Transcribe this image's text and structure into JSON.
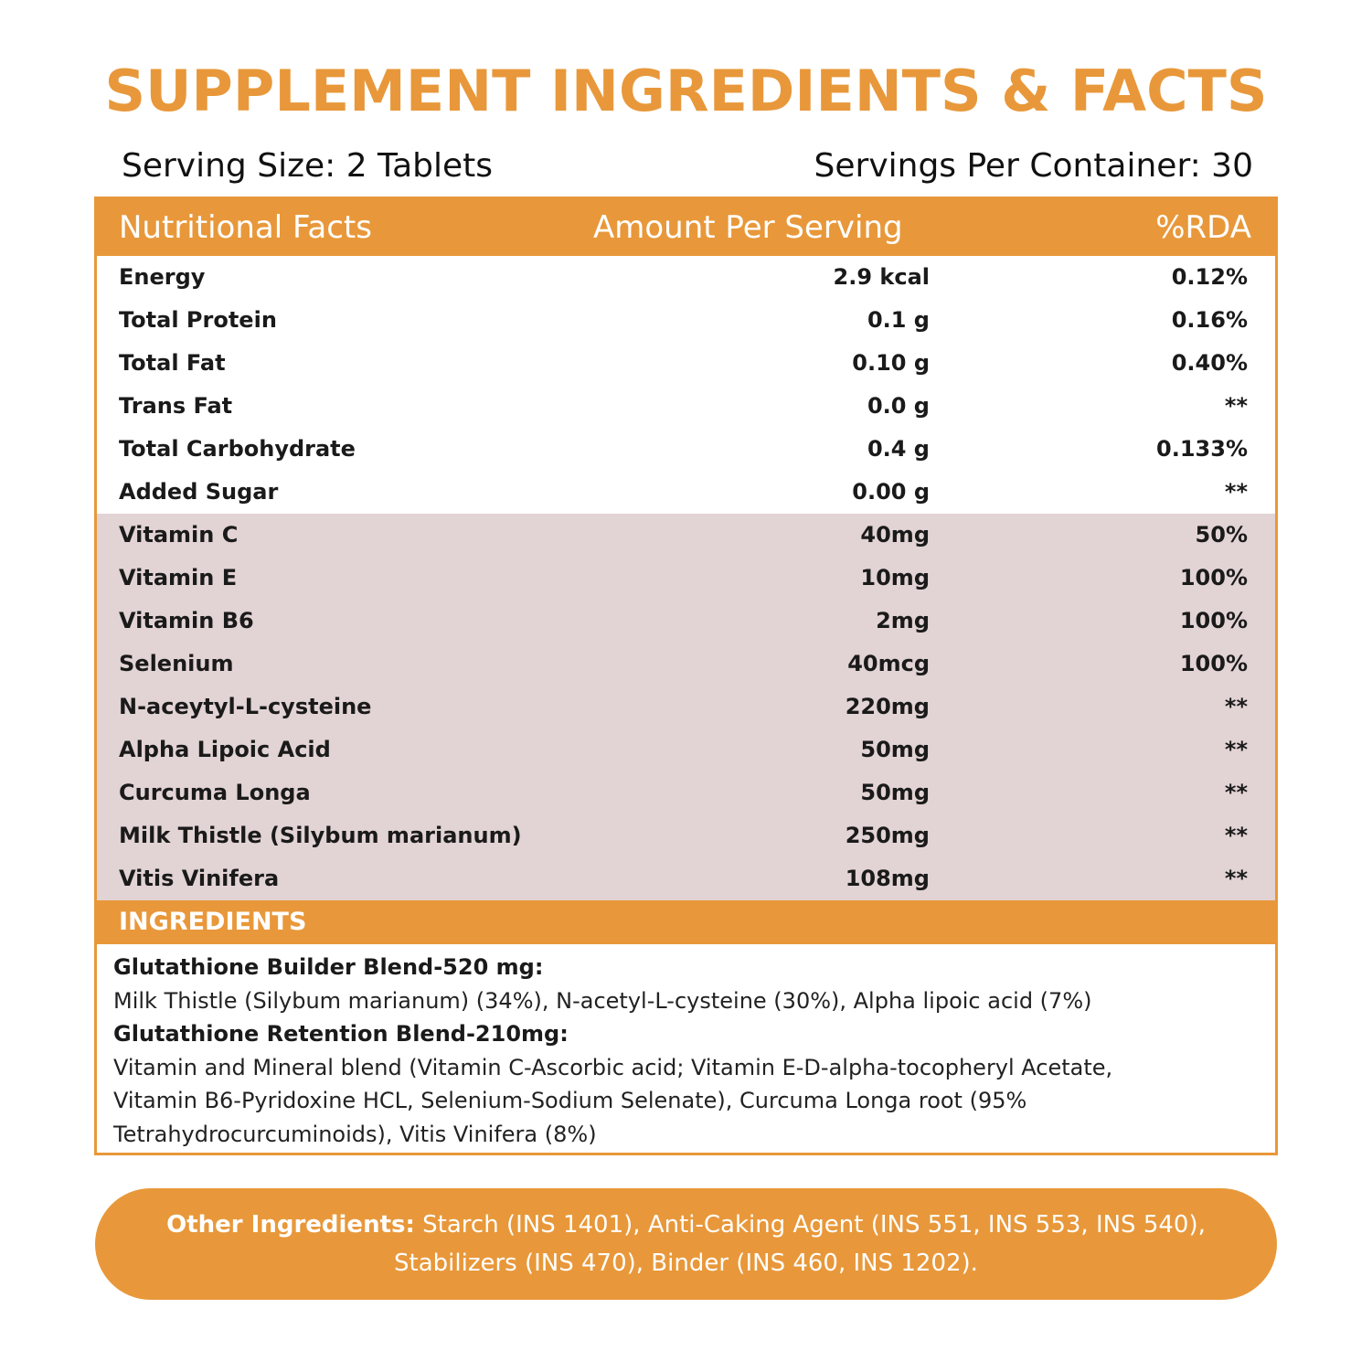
{
  "title": "SUPPLEMENT INGREDIENTS & FACTS",
  "serving_size": "Serving Size: 2 Tablets",
  "servings_per_container": "Servings Per Container: 30",
  "table": {
    "headers": {
      "name": "Nutritional Facts",
      "amount": "Amount Per Serving",
      "rda": "%RDA"
    },
    "nutrition_rows": [
      {
        "name": "Energy",
        "amount": "2.9 kcal",
        "rda": "0.12%"
      },
      {
        "name": "Total Protein",
        "amount": "0.1 g",
        "rda": "0.16%"
      },
      {
        "name": "Total Fat",
        "amount": "0.10 g",
        "rda": "0.40%"
      },
      {
        "name": "Trans Fat",
        "amount": "0.0 g",
        "rda": "**"
      },
      {
        "name": "Total Carbohydrate",
        "amount": "0.4 g",
        "rda": "0.133%"
      },
      {
        "name": "Added Sugar",
        "amount": "0.00 g",
        "rda": "**"
      }
    ],
    "active_rows": [
      {
        "name": "Vitamin C",
        "amount": "40mg",
        "rda": "50%"
      },
      {
        "name": "Vitamin E",
        "amount": "10mg",
        "rda": "100%"
      },
      {
        "name": "Vitamin B6",
        "amount": "2mg",
        "rda": "100%"
      },
      {
        "name": "Selenium",
        "amount": "40mcg",
        "rda": "100%"
      },
      {
        "name": "N-aceytyl-L-cysteine",
        "amount": "220mg",
        "rda": "**"
      },
      {
        "name": "Alpha Lipoic Acid",
        "amount": "50mg",
        "rda": "**"
      },
      {
        "name": "Curcuma Longa",
        "amount": "50mg",
        "rda": "**"
      },
      {
        "name": "Milk Thistle (Silybum marianum)",
        "amount": "250mg",
        "rda": "**"
      },
      {
        "name": "Vitis Vinifera",
        "amount": "108mg",
        "rda": "**"
      }
    ]
  },
  "ingredients": {
    "heading": "INGREDIENTS",
    "builder_title": "Glutathione Builder Blend-520 mg:",
    "builder_text": "Milk Thistle (Silybum marianum) (34%), N-acetyl-L-cysteine (30%), Alpha lipoic acid (7%)",
    "retention_title": "Glutathione Retention Blend-210mg:",
    "retention_text_1": "Vitamin and Mineral blend (Vitamin C-Ascorbic acid; Vitamin E-D-alpha-tocopheryl Acetate,",
    "retention_text_2": "Vitamin B6-Pyridoxine HCL, Selenium-Sodium Selenate), Curcuma Longa root (95%",
    "retention_text_3": "Tetrahydrocurcuminoids), Vitis Vinifera (8%)"
  },
  "other_ingredients": {
    "label": "Other Ingredients:",
    "text_1": " Starch (INS 1401), Anti-Caking Agent (INS 551, INS 553, INS 540),",
    "text_2": "Stabilizers (INS 470), Binder (INS 460, INS 1202)."
  },
  "colors": {
    "accent": "#E8983A",
    "highlight_rows": "#E2D3D4"
  }
}
